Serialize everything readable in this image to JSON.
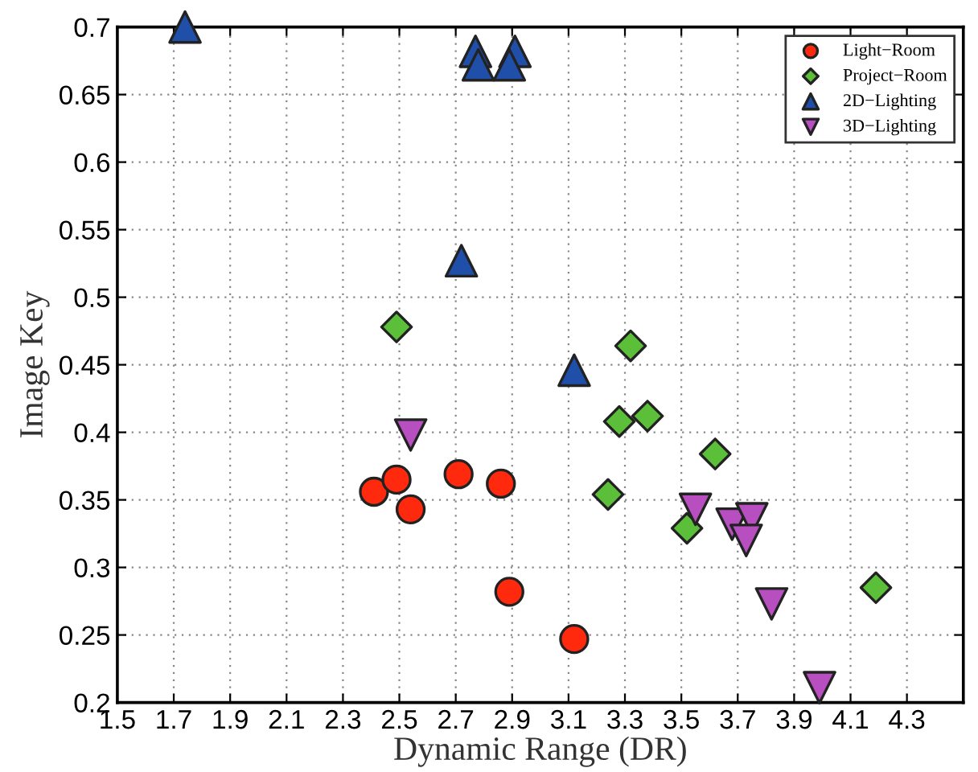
{
  "chart_data": {
    "type": "scatter",
    "xlabel": "Dynamic Range (DR)",
    "ylabel": "Image Key",
    "xlim": [
      1.5,
      4.5
    ],
    "xticks": [
      1.5,
      1.7,
      1.9,
      2.1,
      2.3,
      2.5,
      2.7,
      2.9,
      3.1,
      3.3,
      3.5,
      3.7,
      3.9,
      4.1,
      4.3
    ],
    "ylim": [
      0.2,
      0.7
    ],
    "yticks": [
      0.2,
      0.25,
      0.3,
      0.35,
      0.4,
      0.45,
      0.5,
      0.55,
      0.6,
      0.65,
      0.7
    ],
    "grid": true,
    "legend": "top right",
    "series": [
      {
        "name": "Light−Room",
        "color": "#ff2a0e",
        "marker": "circle",
        "x": [
          2.41,
          2.49,
          2.54,
          2.71,
          2.86,
          2.89,
          3.12
        ],
        "values": [
          0.356,
          0.365,
          0.343,
          0.369,
          0.362,
          0.282,
          0.247
        ]
      },
      {
        "name": "Project−Room",
        "color": "#5cbf3a",
        "marker": "diamond",
        "x": [
          2.49,
          3.32,
          3.28,
          3.38,
          3.24,
          3.62,
          3.52,
          4.19
        ],
        "values": [
          0.478,
          0.464,
          0.408,
          0.412,
          0.354,
          0.384,
          0.329,
          0.285
        ]
      },
      {
        "name": "2D−Lighting",
        "color": "#1f4fa8",
        "marker": "triangle",
        "x": [
          1.74,
          2.77,
          2.78,
          2.91,
          2.89,
          2.72,
          3.12
        ],
        "values": [
          0.7,
          0.682,
          0.672,
          0.682,
          0.672,
          0.527,
          0.446
        ]
      },
      {
        "name": "3D−Lighting",
        "color": "#b84fc0",
        "marker": "triangle_down",
        "x": [
          2.54,
          3.55,
          3.68,
          3.75,
          3.73,
          3.82,
          3.99
        ],
        "values": [
          0.398,
          0.343,
          0.332,
          0.336,
          0.32,
          0.273,
          0.211
        ]
      }
    ]
  }
}
